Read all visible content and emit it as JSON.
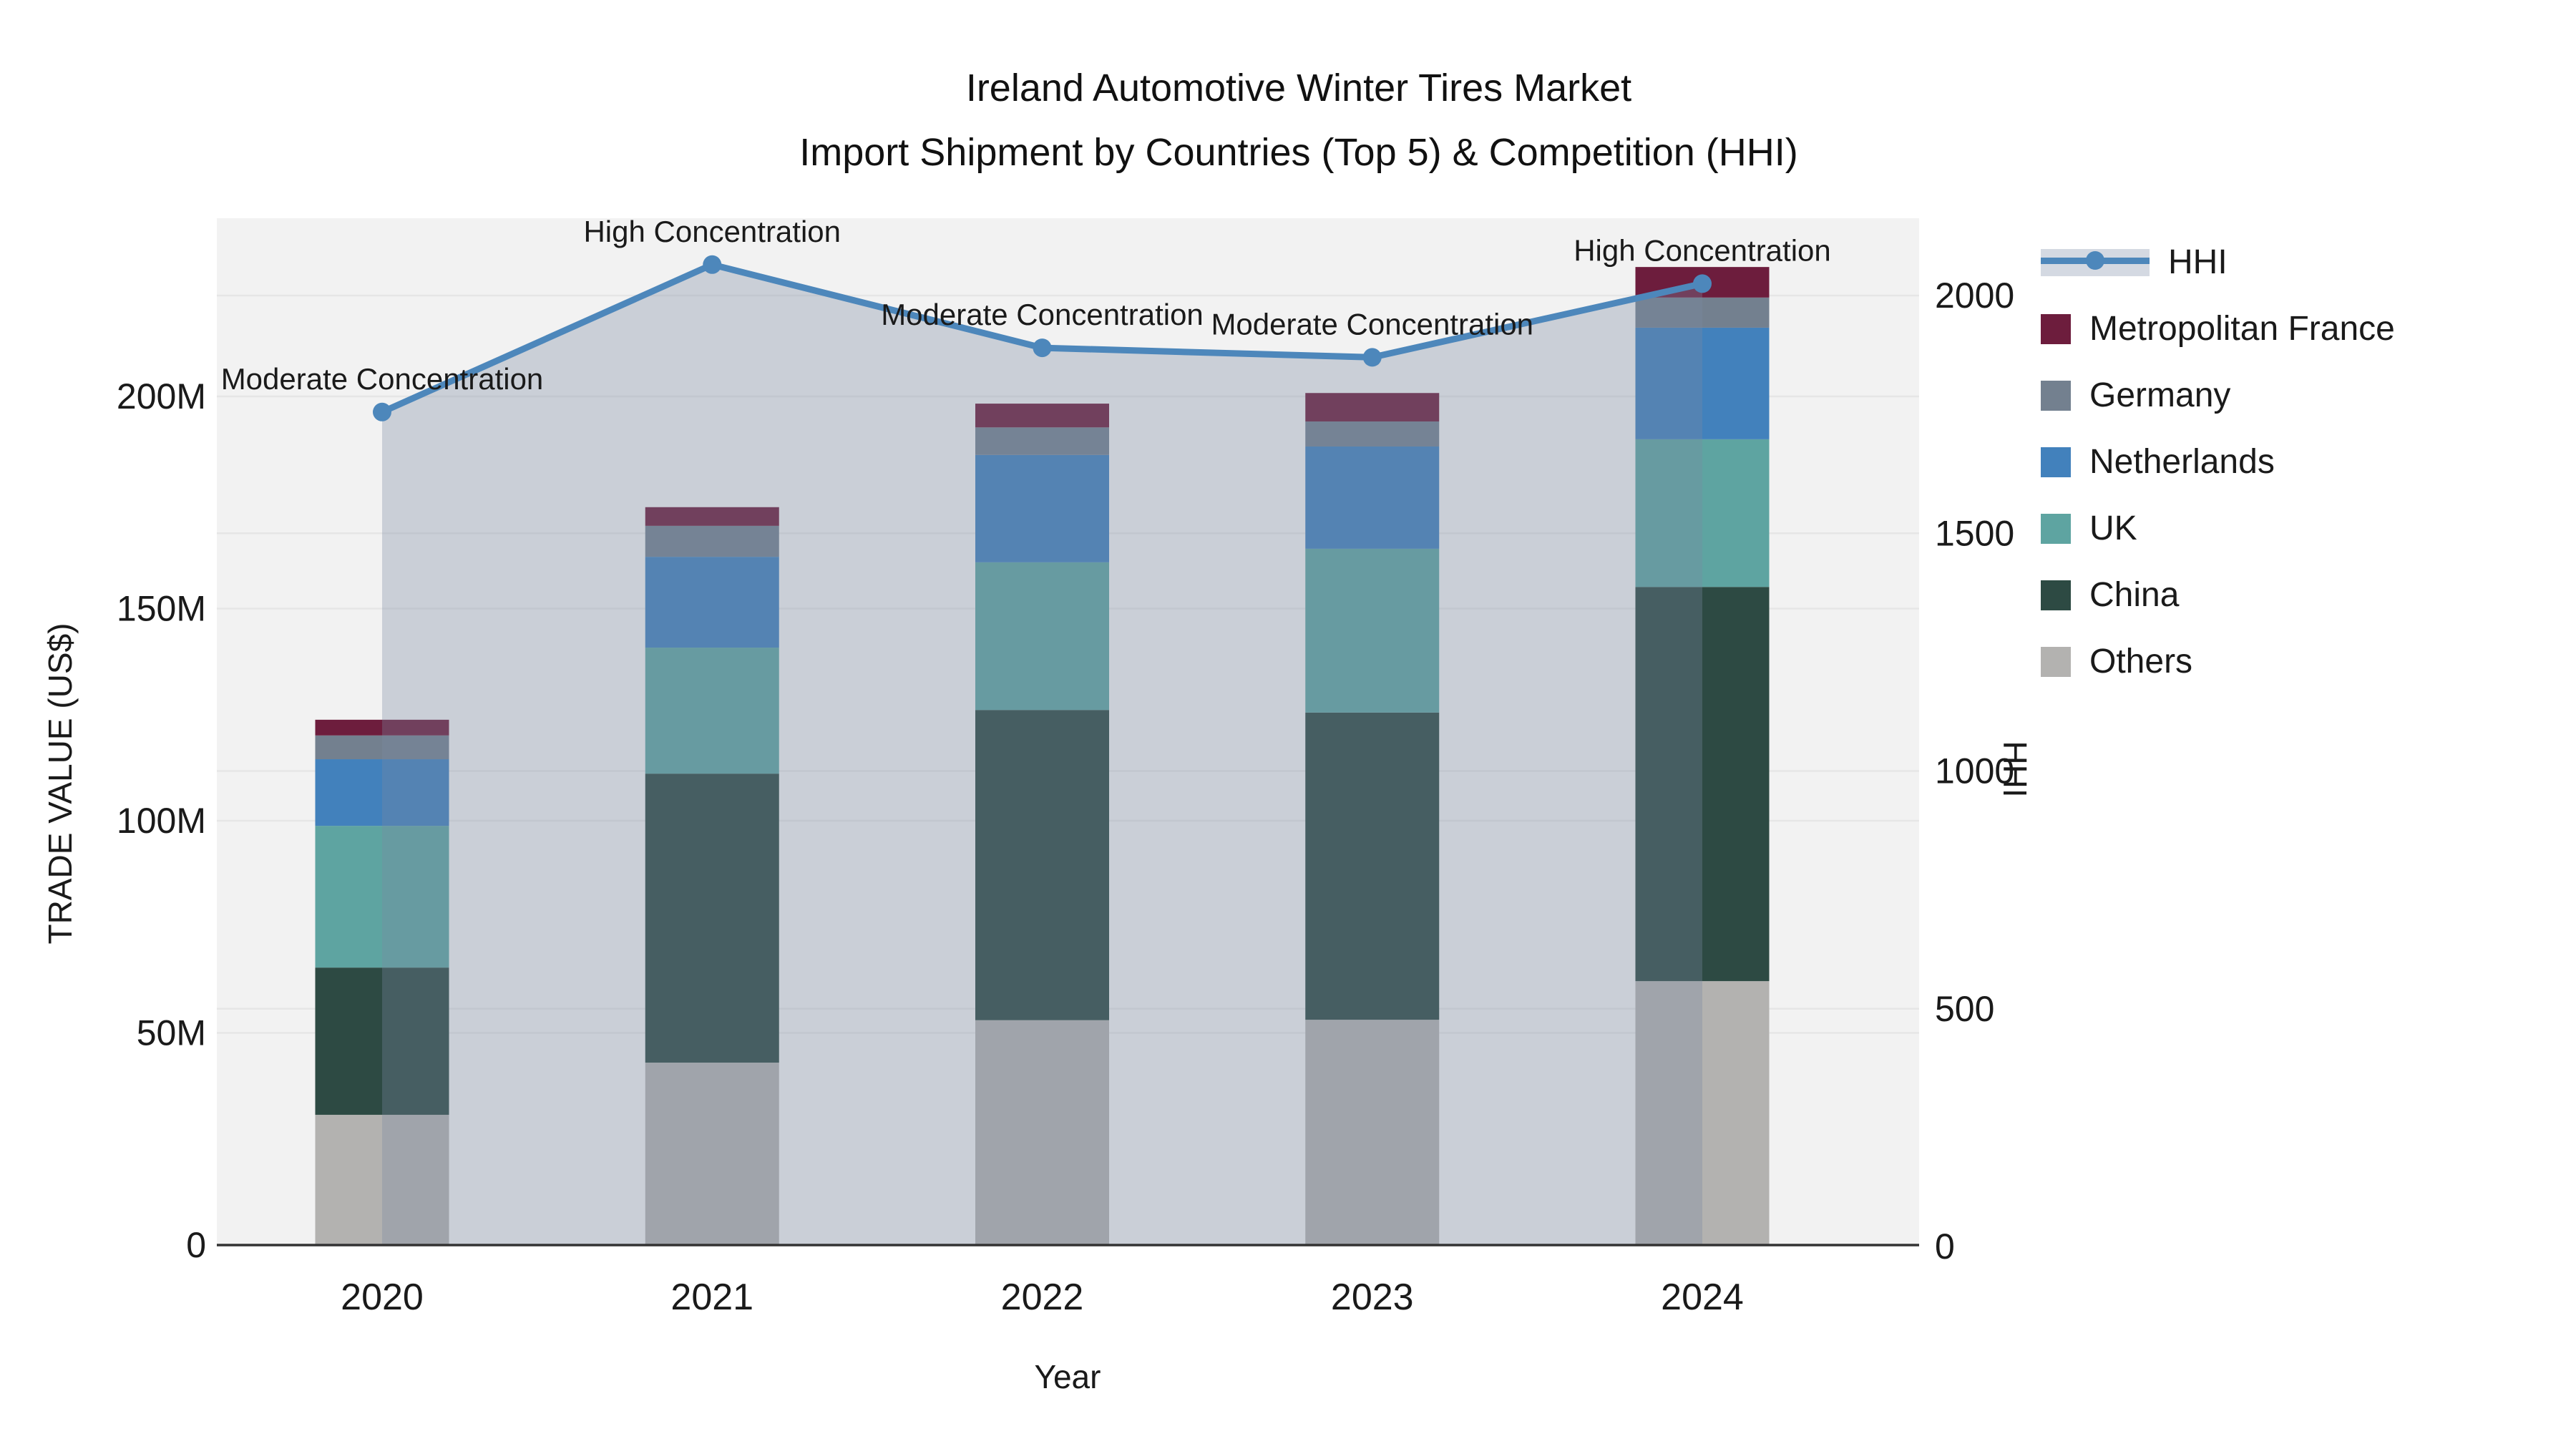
{
  "title": {
    "line1": "Ireland Automotive Winter Tires Market",
    "line2": "Import Shipment by Countries (Top 5) & Competition (HHI)"
  },
  "legend": {
    "items": [
      {
        "label": "HHI",
        "type": "line"
      },
      {
        "label": "Metropolitan France",
        "type": "box",
        "color": "#6d1d3d"
      },
      {
        "label": "Germany",
        "type": "box",
        "color": "#73808f"
      },
      {
        "label": "Netherlands",
        "type": "box",
        "color": "#4281bc"
      },
      {
        "label": "UK",
        "type": "box",
        "color": "#5ea4a1"
      },
      {
        "label": "China",
        "type": "box",
        "color": "#2d4a43"
      },
      {
        "label": "Others",
        "type": "box",
        "color": "#b3b2b0"
      }
    ]
  },
  "colors": {
    "metropolitan_france": "#6d1d3d",
    "germany": "#73808f",
    "netherlands": "#4281bc",
    "uk": "#5ea4a1",
    "china": "#2d4a43",
    "others": "#b3b2b0",
    "hhi_line": "#4d87bb",
    "hhi_area": "rgba(122,137,162,0.33)",
    "grid": "#e6e6e6",
    "plot_bg": "#f2f2f2",
    "spine": "#333333",
    "text": "#1a1a1a"
  },
  "chart_data": {
    "type": "combo: stacked bar (left axis) + line with area fill (right axis)",
    "categories": [
      "2020",
      "2021",
      "2022",
      "2023",
      "2024"
    ],
    "bar_unit": "Million US$",
    "stack_order_bottom_to_top": [
      "Others",
      "China",
      "UK",
      "Netherlands",
      "Germany",
      "Metropolitan France"
    ],
    "series": [
      {
        "name": "Others",
        "values": [
          30.7,
          43.0,
          53.0,
          53.1,
          62.2
        ]
      },
      {
        "name": "China",
        "values": [
          34.7,
          68.1,
          73.1,
          72.4,
          92.9
        ]
      },
      {
        "name": "UK",
        "values": [
          33.4,
          29.7,
          34.8,
          38.6,
          34.8
        ]
      },
      {
        "name": "Netherlands",
        "values": [
          15.7,
          21.4,
          25.3,
          24.1,
          26.3
        ]
      },
      {
        "name": "Germany",
        "values": [
          5.6,
          7.3,
          6.5,
          5.9,
          7.1
        ]
      },
      {
        "name": "Metropolitan France",
        "values": [
          3.7,
          4.4,
          5.6,
          6.7,
          7.2
        ]
      }
    ],
    "bar_totals": [
      123.8,
      173.9,
      198.3,
      200.8,
      230.5
    ],
    "line_series": {
      "name": "HHI",
      "axis": "right",
      "values": [
        1755,
        2065,
        1890,
        1870,
        2025
      ]
    },
    "annotations": [
      "Moderate Concentration",
      "High Concentration",
      "Moderate Concentration",
      "Moderate Concentration",
      "High Concentration"
    ],
    "x_axis": {
      "label": "Year"
    },
    "y_left_axis": {
      "label": "TRADE VALUE (US$)",
      "tick_values": [
        0,
        50,
        100,
        150,
        200
      ],
      "tick_labels": [
        "0",
        "50M",
        "100M",
        "150M",
        "200M"
      ],
      "range_millions": [
        0,
        242
      ]
    },
    "y_right_axis": {
      "label": "HHI",
      "tick_values": [
        0,
        500,
        1000,
        1500,
        2000
      ],
      "tick_labels": [
        "0",
        "500",
        "1000",
        "1500",
        "2000"
      ],
      "range": [
        0,
        2160
      ]
    },
    "grid": true,
    "legend_position": "right"
  }
}
